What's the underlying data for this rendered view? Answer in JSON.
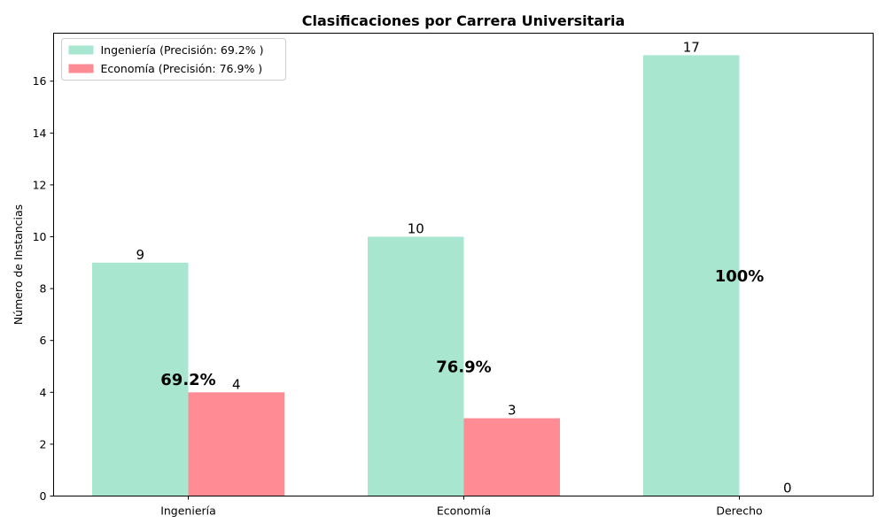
{
  "chart_data": {
    "type": "bar",
    "title": "Clasificaciones por Carrera Universitaria",
    "xlabel": "",
    "ylabel": "Número de Instancias",
    "categories": [
      "Ingeniería",
      "Economía",
      "Derecho"
    ],
    "series": [
      {
        "name": "Ingeniería (Precisión: 69.2% )",
        "color": "#a8e6cf",
        "values": [
          9,
          10,
          17
        ]
      },
      {
        "name": "Economía (Precisión: 76.9% )",
        "color": "#ff8b94",
        "values": [
          4,
          3,
          0
        ]
      }
    ],
    "precision_labels": [
      "69.2%",
      "76.9%",
      "100%"
    ],
    "ylim": [
      0,
      17.85
    ],
    "yticks": [
      0,
      2,
      4,
      6,
      8,
      10,
      12,
      14,
      16
    ],
    "legend_position": "top-left",
    "grid": false
  }
}
